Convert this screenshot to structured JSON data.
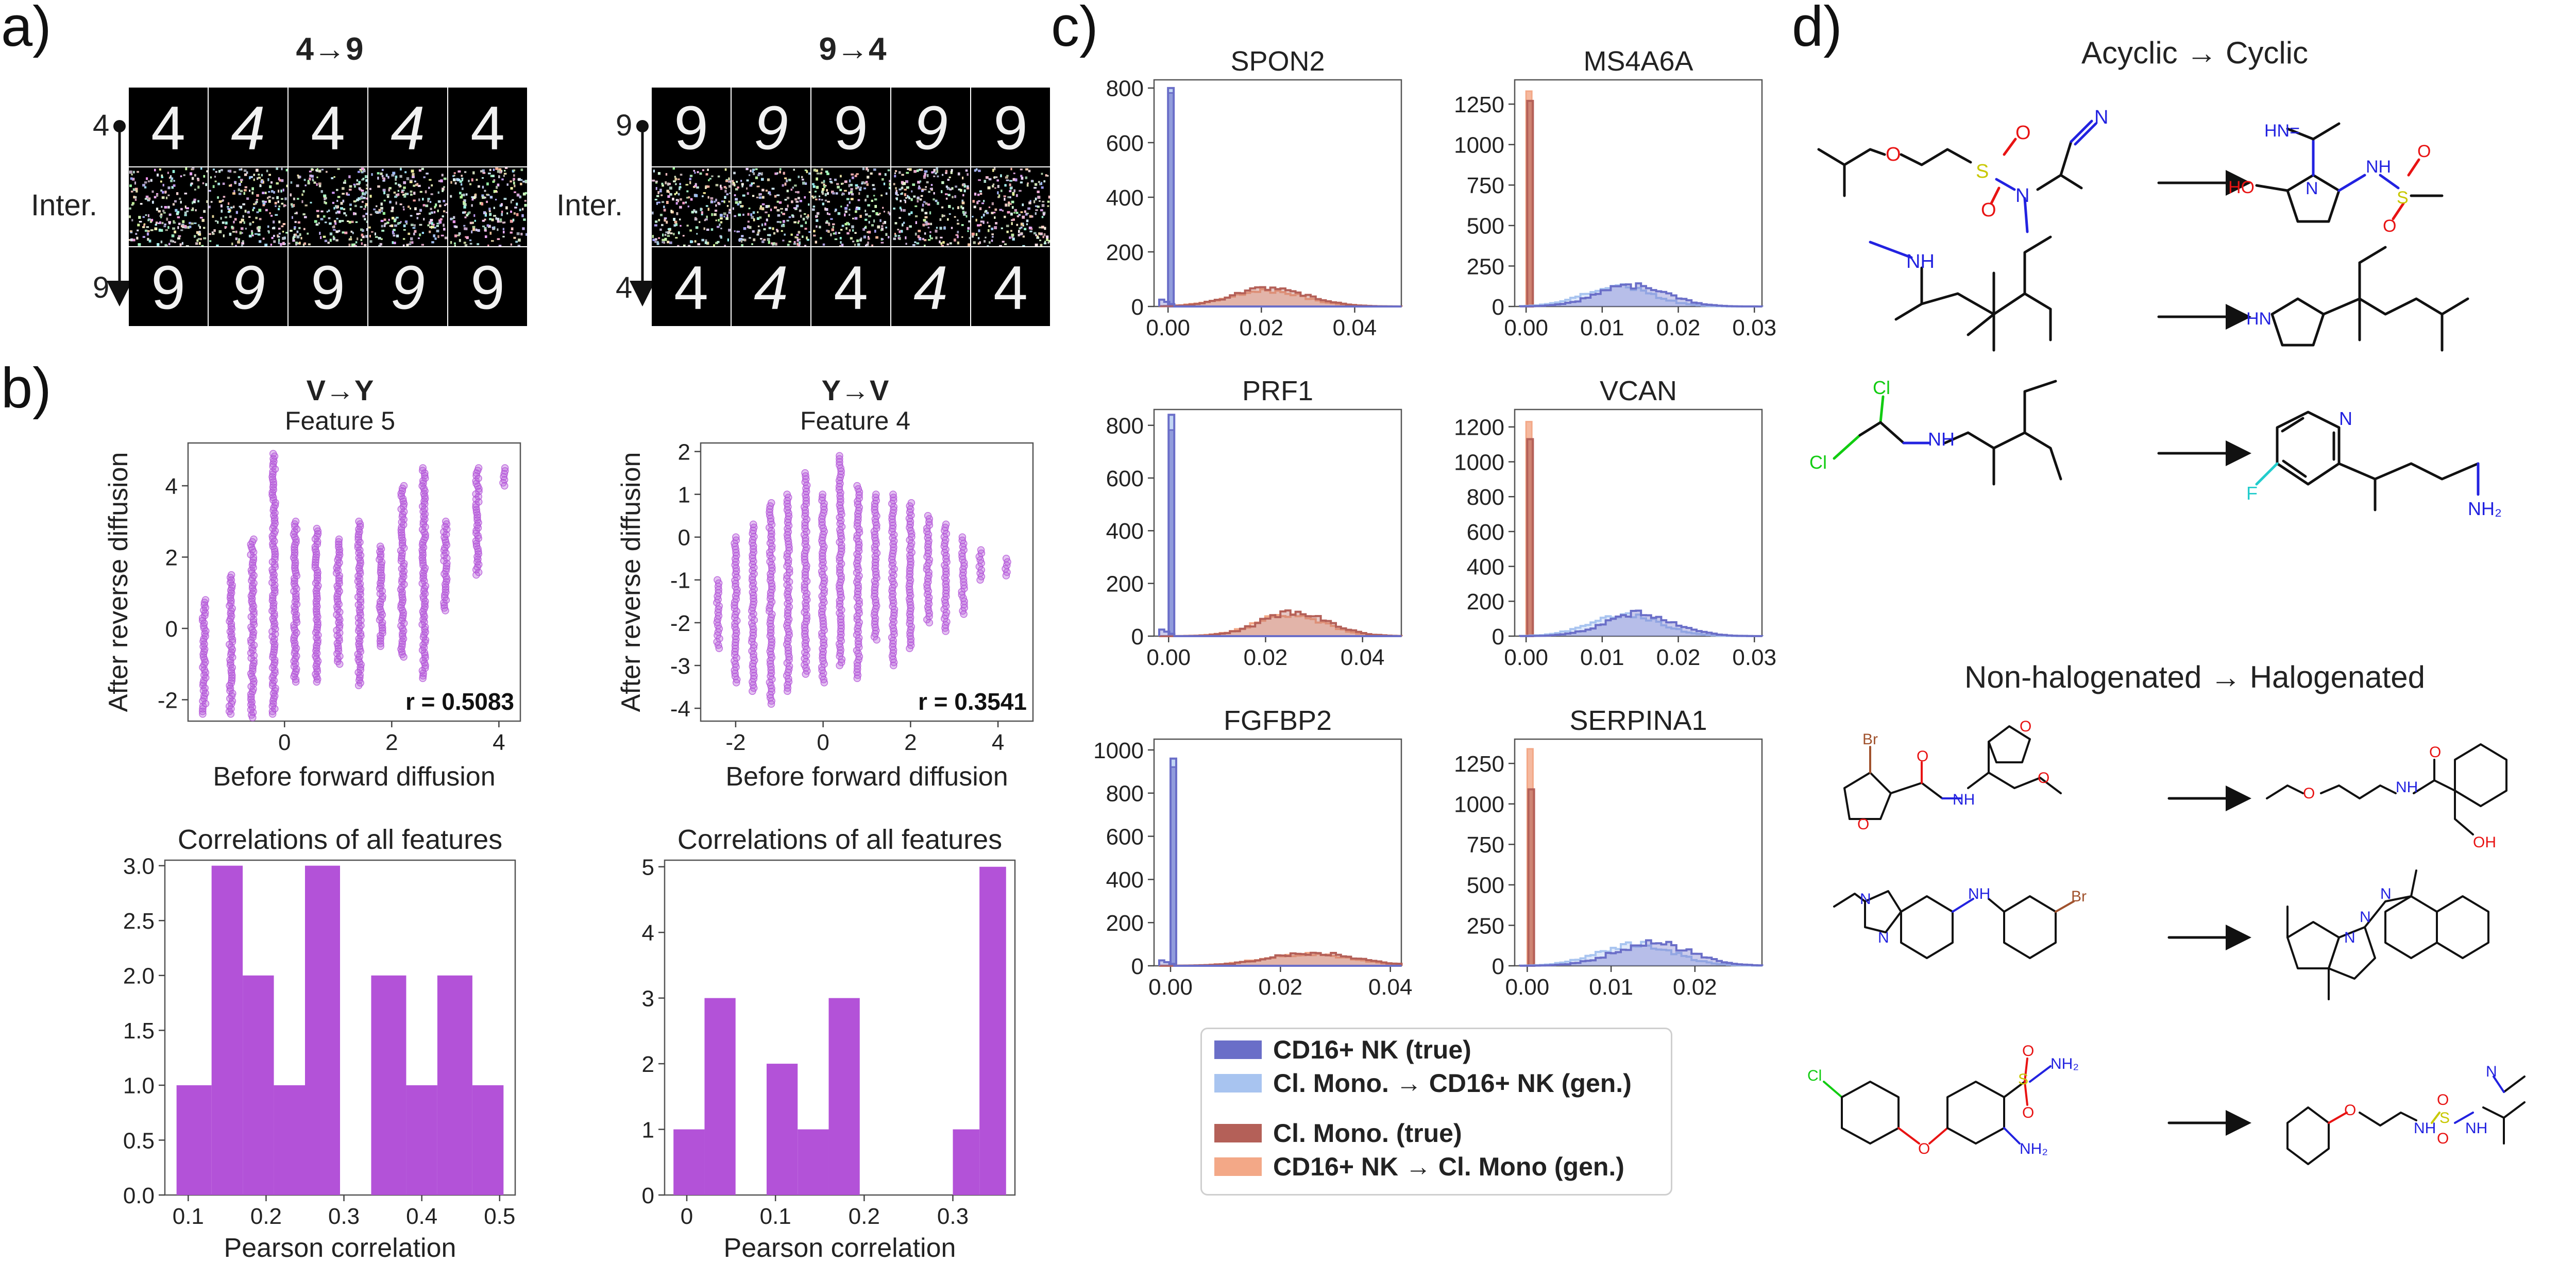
{
  "panels": {
    "a": "a)",
    "b": "b)",
    "c": "c)",
    "d": "d)"
  },
  "panel_a": {
    "left": {
      "title": "4→9",
      "top_label": "4",
      "middle_label": "Inter.",
      "bottom_label": "9",
      "top_digits": [
        "4",
        "4",
        "4",
        "4",
        "4"
      ],
      "bottom_digits": [
        "9",
        "9",
        "9",
        "9",
        "9"
      ]
    },
    "right": {
      "title": "9→4",
      "top_label": "9",
      "middle_label": "Inter.",
      "bottom_label": "4",
      "top_digits": [
        "9",
        "9",
        "9",
        "9",
        "9"
      ],
      "bottom_digits": [
        "4",
        "4",
        "4",
        "4",
        "4"
      ]
    }
  },
  "colors": {
    "purple": "#b352d8",
    "nk_true": "#6a6ec8",
    "nk_gen": "#a8c4f0",
    "mono_true": "#b46058",
    "mono_gen": "#f3a887",
    "mol_red": "#e81313",
    "mol_blue": "#2222e0",
    "mol_yellow": "#c8c800",
    "mol_green": "#11cc11",
    "mol_cyan": "#22cccc",
    "mol_brown": "#a0522d"
  },
  "chart_data": [
    {
      "type": "scatter",
      "id": "b_left_scatter",
      "title": "V→Y",
      "subtitle": "Feature 5",
      "xlabel": "Before forward diffusion",
      "ylabel": "After reverse diffusion",
      "xlim": [
        -1.8,
        4.4
      ],
      "ylim": [
        -2.6,
        5.2
      ],
      "xticks": [
        0,
        2,
        4
      ],
      "yticks": [
        -2,
        0,
        2,
        4
      ],
      "annotation": "r = 0.5083",
      "columns": [
        {
          "x": -1.5,
          "ymin": -2.4,
          "ymax": 0.8
        },
        {
          "x": -1.0,
          "ymin": -2.4,
          "ymax": 1.5
        },
        {
          "x": -0.6,
          "ymin": -2.5,
          "ymax": 2.5
        },
        {
          "x": -0.2,
          "ymin": -2.4,
          "ymax": 4.9
        },
        {
          "x": 0.2,
          "ymin": -1.5,
          "ymax": 3.0
        },
        {
          "x": 0.6,
          "ymin": -1.5,
          "ymax": 2.8
        },
        {
          "x": 1.0,
          "ymin": -1.0,
          "ymax": 2.5
        },
        {
          "x": 1.4,
          "ymin": -1.6,
          "ymax": 3.0
        },
        {
          "x": 1.8,
          "ymin": -0.5,
          "ymax": 2.3
        },
        {
          "x": 2.2,
          "ymin": -0.8,
          "ymax": 4.0
        },
        {
          "x": 2.6,
          "ymin": -1.4,
          "ymax": 4.5
        },
        {
          "x": 3.0,
          "ymin": 0.5,
          "ymax": 3.0
        },
        {
          "x": 3.6,
          "ymin": 1.5,
          "ymax": 4.5
        },
        {
          "x": 4.1,
          "ymin": 4.0,
          "ymax": 4.5
        }
      ]
    },
    {
      "type": "scatter",
      "id": "b_right_scatter",
      "title": "Y→V",
      "subtitle": "Feature 4",
      "xlabel": "Before forward diffusion",
      "ylabel": "After reverse diffusion",
      "xlim": [
        -2.8,
        4.8
      ],
      "ylim": [
        -4.3,
        2.2
      ],
      "xticks": [
        -2,
        0,
        2,
        4
      ],
      "yticks": [
        -4,
        -3,
        -2,
        -1,
        0,
        1,
        2
      ],
      "annotation": "r = 0.3541",
      "columns": [
        {
          "x": -2.4,
          "ymin": -2.6,
          "ymax": -1.0
        },
        {
          "x": -2.0,
          "ymin": -3.4,
          "ymax": 0.0
        },
        {
          "x": -1.6,
          "ymin": -3.6,
          "ymax": 0.3
        },
        {
          "x": -1.2,
          "ymin": -3.9,
          "ymax": 0.8
        },
        {
          "x": -0.8,
          "ymin": -3.6,
          "ymax": 1.0
        },
        {
          "x": -0.4,
          "ymin": -3.2,
          "ymax": 1.5
        },
        {
          "x": 0.0,
          "ymin": -3.4,
          "ymax": 1.0
        },
        {
          "x": 0.4,
          "ymin": -3.0,
          "ymax": 1.9
        },
        {
          "x": 0.8,
          "ymin": -3.3,
          "ymax": 1.2
        },
        {
          "x": 1.2,
          "ymin": -2.4,
          "ymax": 1.0
        },
        {
          "x": 1.6,
          "ymin": -3.0,
          "ymax": 1.0
        },
        {
          "x": 2.0,
          "ymin": -2.6,
          "ymax": 0.8
        },
        {
          "x": 2.4,
          "ymin": -2.0,
          "ymax": 0.5
        },
        {
          "x": 2.8,
          "ymin": -2.2,
          "ymax": 0.3
        },
        {
          "x": 3.2,
          "ymin": -1.8,
          "ymax": 0.0
        },
        {
          "x": 3.6,
          "ymin": -1.0,
          "ymax": -0.3
        },
        {
          "x": 4.2,
          "ymin": -0.9,
          "ymax": -0.5
        }
      ]
    },
    {
      "type": "bar",
      "id": "b_left_hist",
      "title": "Correlations of all features",
      "xlabel": "Pearson correlation",
      "ylabel": "",
      "xlim": [
        0.07,
        0.52
      ],
      "ylim": [
        0,
        3.05
      ],
      "xticks": [
        0.1,
        0.2,
        0.3,
        0.4,
        0.5
      ],
      "yticks": [
        0.0,
        0.5,
        1.0,
        1.5,
        2.0,
        2.5,
        3.0
      ],
      "ytick_labels": [
        "0.0",
        "0.5",
        "1.0",
        "1.5",
        "2.0",
        "2.5",
        "3.0"
      ],
      "bins": [
        {
          "x0": 0.085,
          "x1": 0.13,
          "count": 1
        },
        {
          "x0": 0.13,
          "x1": 0.17,
          "count": 3
        },
        {
          "x0": 0.17,
          "x1": 0.21,
          "count": 2
        },
        {
          "x0": 0.21,
          "x1": 0.25,
          "count": 1
        },
        {
          "x0": 0.25,
          "x1": 0.295,
          "count": 3
        },
        {
          "x0": 0.295,
          "x1": 0.335,
          "count": 0
        },
        {
          "x0": 0.335,
          "x1": 0.38,
          "count": 2
        },
        {
          "x0": 0.38,
          "x1": 0.42,
          "count": 1
        },
        {
          "x0": 0.42,
          "x1": 0.465,
          "count": 2
        },
        {
          "x0": 0.465,
          "x1": 0.505,
          "count": 1
        }
      ]
    },
    {
      "type": "bar",
      "id": "b_right_hist",
      "title": "Correlations of all features",
      "xlabel": "Pearson correlation",
      "ylabel": "",
      "xlim": [
        -0.025,
        0.37
      ],
      "ylim": [
        0,
        5.1
      ],
      "xticks": [
        0.0,
        0.1,
        0.2,
        0.3
      ],
      "yticks": [
        0,
        1,
        2,
        3,
        4,
        5
      ],
      "ytick_labels": [
        "0",
        "1",
        "2",
        "3",
        "4",
        "5"
      ],
      "bins": [
        {
          "x0": -0.015,
          "x1": 0.02,
          "count": 1
        },
        {
          "x0": 0.02,
          "x1": 0.055,
          "count": 3
        },
        {
          "x0": 0.055,
          "x1": 0.09,
          "count": 0
        },
        {
          "x0": 0.09,
          "x1": 0.125,
          "count": 2
        },
        {
          "x0": 0.125,
          "x1": 0.16,
          "count": 1
        },
        {
          "x0": 0.16,
          "x1": 0.195,
          "count": 3
        },
        {
          "x0": 0.195,
          "x1": 0.23,
          "count": 0
        },
        {
          "x0": 0.23,
          "x1": 0.265,
          "count": 0
        },
        {
          "x0": 0.265,
          "x1": 0.3,
          "count": 0
        },
        {
          "x0": 0.3,
          "x1": 0.33,
          "count": 1
        },
        {
          "x0": 0.33,
          "x1": 0.36,
          "count": 5
        }
      ]
    },
    {
      "type": "histogram",
      "id": "c_spon2",
      "title": "SPON2",
      "xlim": [
        -0.003,
        0.05
      ],
      "ylim": [
        0,
        830
      ],
      "xticks": [
        0.0,
        0.02,
        0.04
      ],
      "xtick_labels": [
        "0.00",
        "0.02",
        "0.04"
      ],
      "yticks": [
        0,
        200,
        400,
        600,
        800
      ],
      "spike_x": 0.0,
      "nk_peak": 800,
      "mono_spike": 790,
      "mono_hump": {
        "center": 0.022,
        "width": 0.008,
        "height": 65
      }
    },
    {
      "type": "histogram",
      "id": "c_ms4a6a",
      "title": "MS4A6A",
      "xlim": [
        -0.0015,
        0.031
      ],
      "ylim": [
        0,
        1400
      ],
      "xticks": [
        0.0,
        0.01,
        0.02,
        0.03
      ],
      "xtick_labels": [
        "0.00",
        "0.01",
        "0.02",
        "0.03"
      ],
      "yticks": [
        0,
        250,
        500,
        750,
        1000,
        1250
      ],
      "spike_x": 0.0,
      "nk_peak": 1330,
      "mono_spike": 1270,
      "nk_hump": {
        "center": 0.014,
        "width": 0.0045,
        "height": 130
      }
    },
    {
      "type": "histogram",
      "id": "c_prf1",
      "title": "PRF1",
      "xlim": [
        -0.003,
        0.048
      ],
      "ylim": [
        0,
        860
      ],
      "xticks": [
        0.0,
        0.02,
        0.04
      ],
      "xtick_labels": [
        "0.00",
        "0.02",
        "0.04"
      ],
      "yticks": [
        0,
        200,
        400,
        600,
        800
      ],
      "spike_x": 0.0,
      "nk_peak": 840,
      "mono_spike": 790,
      "mono_hump": {
        "center": 0.026,
        "width": 0.007,
        "height": 90
      }
    },
    {
      "type": "histogram",
      "id": "c_vcan",
      "title": "VCAN",
      "xlim": [
        -0.0015,
        0.031
      ],
      "ylim": [
        0,
        1300
      ],
      "xticks": [
        0.0,
        0.01,
        0.02,
        0.03
      ],
      "xtick_labels": [
        "0.00",
        "0.01",
        "0.02",
        "0.03"
      ],
      "yticks": [
        0,
        200,
        400,
        600,
        800,
        1000,
        1200
      ],
      "spike_x": 0.0,
      "nk_peak": 1230,
      "mono_spike": 1130,
      "nk_hump": {
        "center": 0.015,
        "width": 0.0045,
        "height": 130
      }
    },
    {
      "type": "histogram",
      "id": "c_fgfbp2",
      "title": "FGFBP2",
      "xlim": [
        -0.003,
        0.042
      ],
      "ylim": [
        0,
        1050
      ],
      "xticks": [
        0.0,
        0.02,
        0.04
      ],
      "xtick_labels": [
        "0.00",
        "0.02",
        "0.04"
      ],
      "yticks": [
        0,
        200,
        400,
        600,
        800,
        1000
      ],
      "spike_x": 0.0,
      "nk_peak": 960,
      "mono_spike": 930,
      "mono_hump": {
        "center": 0.026,
        "width": 0.008,
        "height": 60
      }
    },
    {
      "type": "histogram",
      "id": "c_serpina1",
      "title": "SERPINA1",
      "xlim": [
        -0.0015,
        0.028
      ],
      "ylim": [
        0,
        1400
      ],
      "xticks": [
        0.0,
        0.01,
        0.02
      ],
      "xtick_labels": [
        "0.00",
        "0.01",
        "0.02"
      ],
      "yticks": [
        0,
        250,
        500,
        750,
        1000,
        1250
      ],
      "spike_x": 0.0,
      "nk_peak": 1340,
      "mono_spike": 1090,
      "nk_hump": {
        "center": 0.015,
        "width": 0.0045,
        "height": 140
      }
    }
  ],
  "panel_c": {
    "legend": [
      {
        "label": "CD16+ NK (true)",
        "color": "#6a6ec8"
      },
      {
        "label": "Cl. Mono. → CD16+ NK (gen.)",
        "color": "#a8c4f0"
      },
      {
        "label": "Cl. Mono. (true)",
        "color": "#b46058"
      },
      {
        "label": "CD16+ NK → Cl. Mono (gen.)",
        "color": "#f3a887"
      }
    ]
  },
  "panel_d": {
    "title_top": "Acyclic → Cyclic",
    "title_bottom": "Non-halogenated → Halogenated",
    "atom_labels": {
      "N": "N",
      "O": "O",
      "S": "S",
      "Cl": "Cl",
      "F": "F",
      "Br": "Br",
      "NH": "NH",
      "HN": "HN",
      "HO": "HO",
      "OH": "OH",
      "NH2": "NH₂",
      "HN_eq": "HN="
    }
  }
}
